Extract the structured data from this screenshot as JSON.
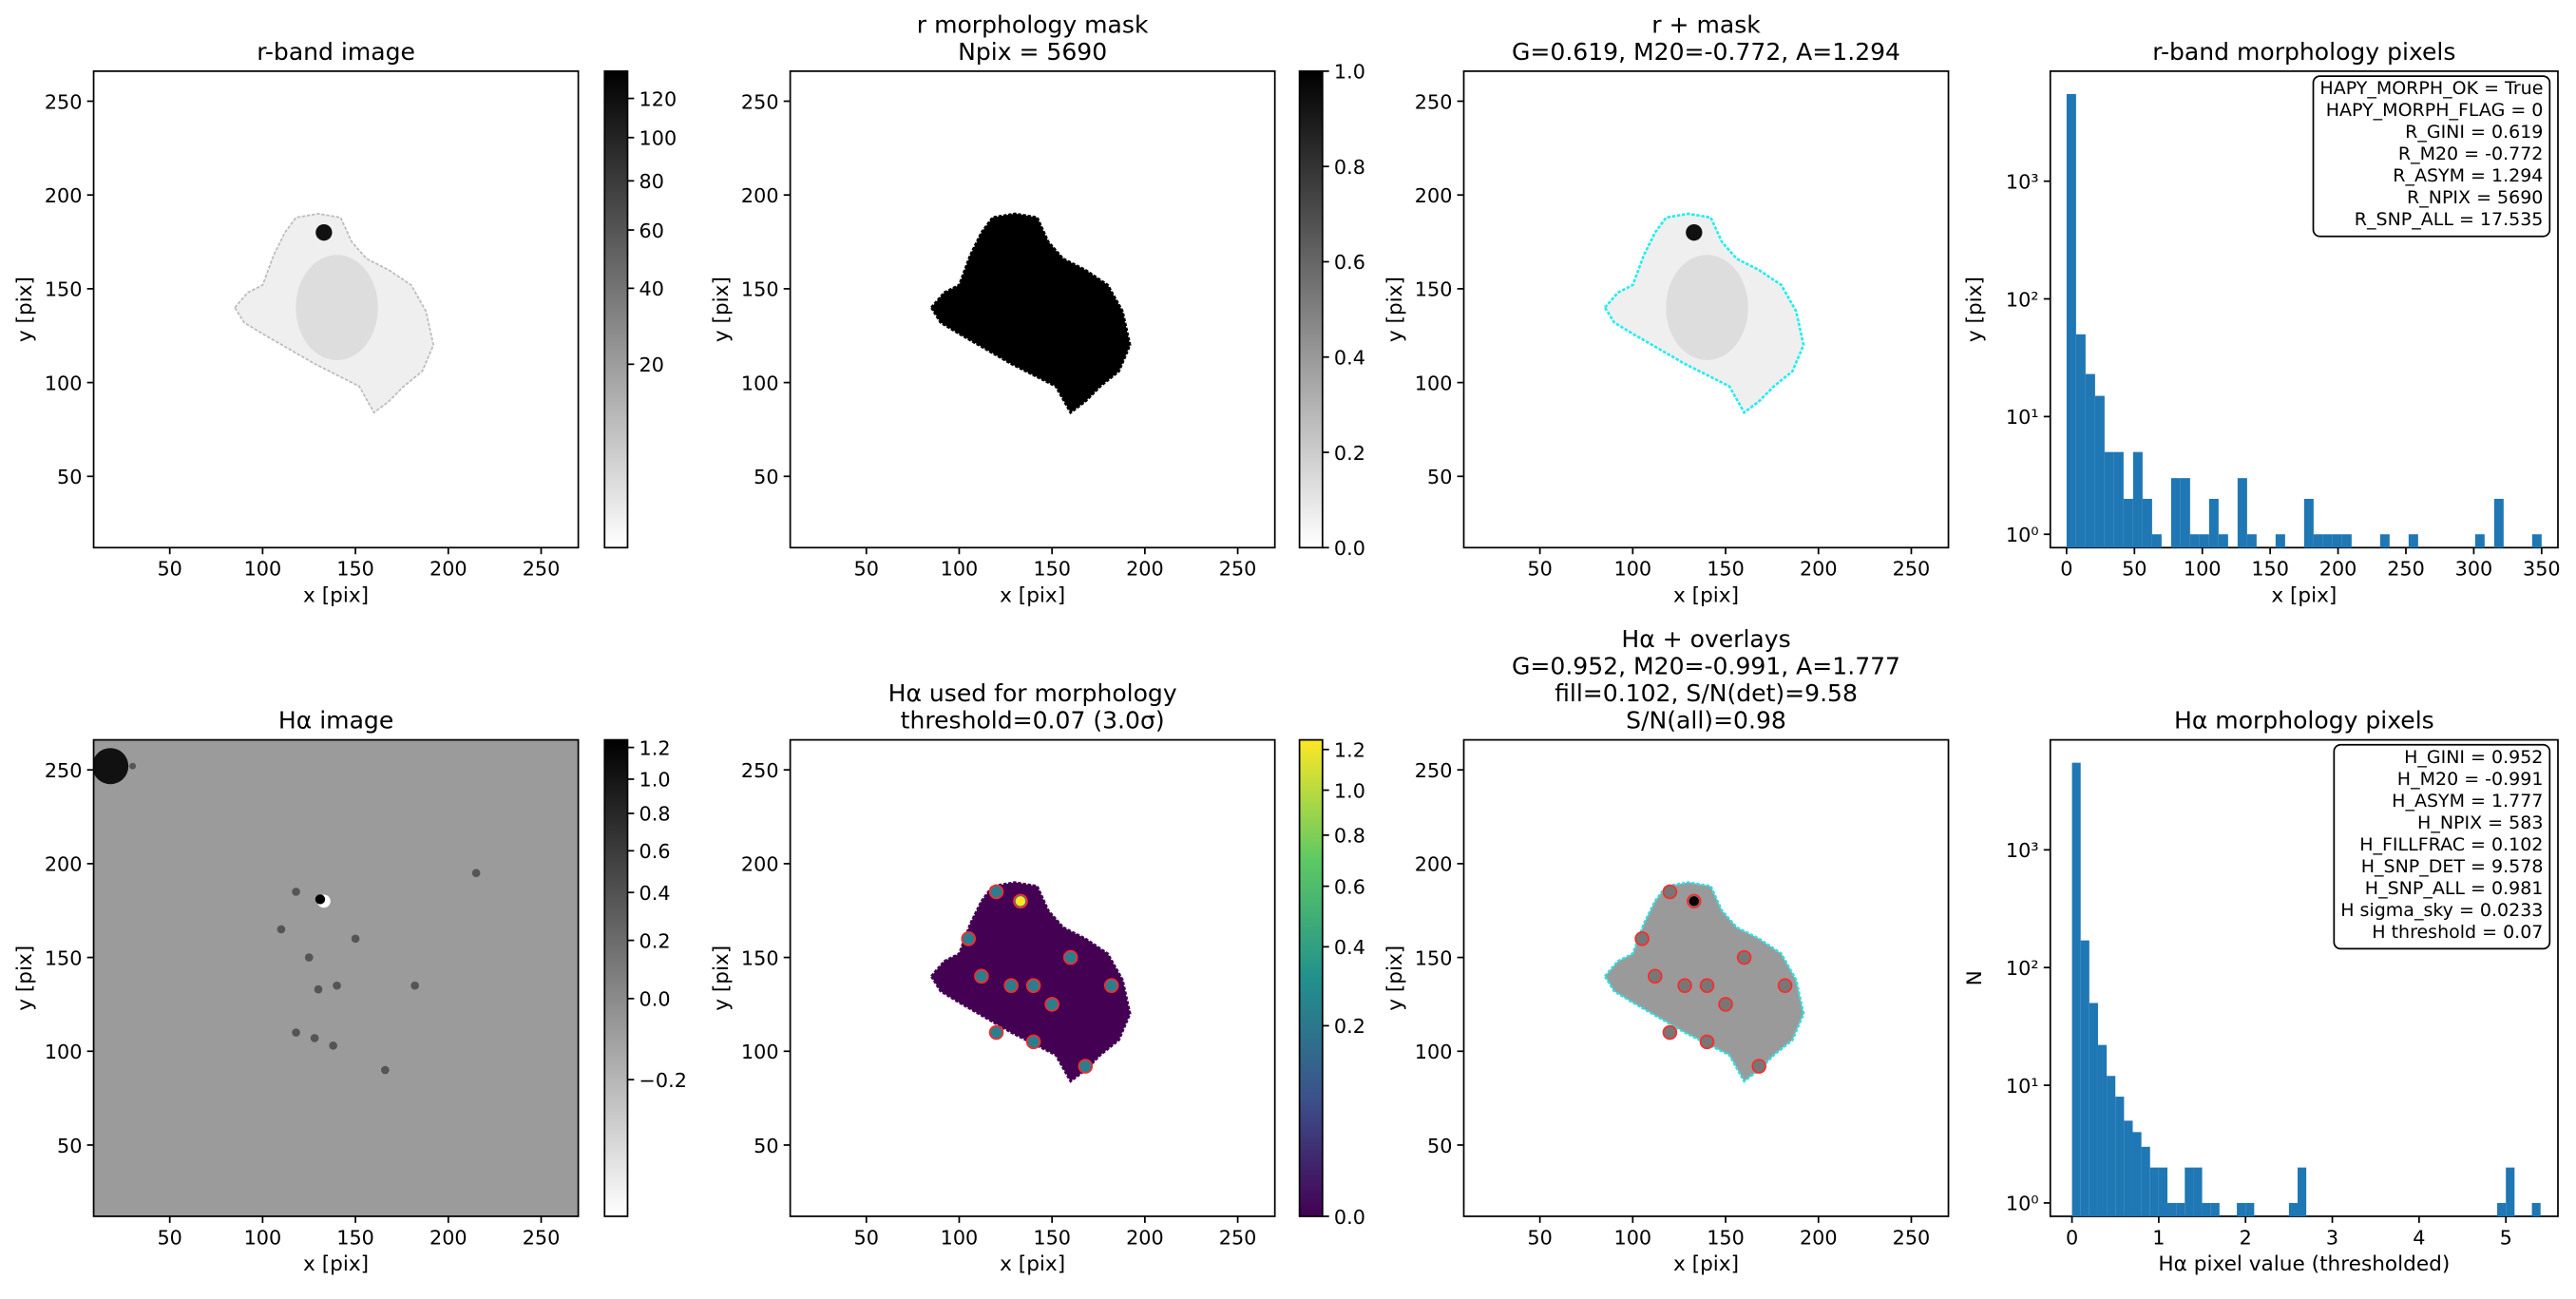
{
  "chart_data": [
    {
      "type": "image",
      "title": [
        "r-band image"
      ],
      "xlabel": "x [pix]",
      "ylabel": "y [pix]",
      "xlim": [
        9,
        270
      ],
      "ylim": [
        12,
        266
      ],
      "xticks": [
        50,
        100,
        150,
        200,
        250
      ],
      "yticks": [
        50,
        100,
        150,
        200,
        250
      ],
      "colorbar": {
        "lim": [
          0,
          135
        ],
        "scale": "sqrt",
        "colormap": "gray_r",
        "ticks": [
          20,
          40,
          60,
          80,
          100,
          120
        ]
      }
    },
    {
      "type": "image",
      "title": [
        "r morphology mask",
        "Npix = 5690"
      ],
      "xlabel": "x [pix]",
      "ylabel": "y [pix]",
      "xlim": [
        9,
        270
      ],
      "ylim": [
        12,
        266
      ],
      "xticks": [
        50,
        100,
        150,
        200,
        250
      ],
      "yticks": [
        50,
        100,
        150,
        200,
        250
      ],
      "colorbar": {
        "lim": [
          0,
          1
        ],
        "scale": "linear",
        "colormap": "gray_r",
        "ticks": [
          {
            "value": 0,
            "label": "0.0"
          },
          0.2,
          0.4,
          0.6,
          0.8,
          {
            "value": 1,
            "label": "1.0"
          }
        ]
      }
    },
    {
      "type": "image",
      "title": [
        "r + mask",
        "G=0.619, M20=-0.772, A=1.294"
      ],
      "xlabel": "x [pix]",
      "ylabel": "y [pix]",
      "xlim": [
        9,
        270
      ],
      "ylim": [
        12,
        266
      ],
      "xticks": [
        50,
        100,
        150,
        200,
        250
      ],
      "yticks": [
        50,
        100,
        150,
        200,
        250
      ]
    },
    {
      "type": "histogram",
      "title": [
        "r-band morphology pixels"
      ],
      "xlabel": "x [pix]",
      "ylabel": "y [pix]",
      "color": "#1f77b4",
      "log_y": true,
      "xlim": [
        -12,
        362
      ],
      "ylim": [
        0.77,
        8600
      ],
      "xticks": [
        0,
        50,
        100,
        150,
        200,
        250,
        300,
        350
      ],
      "yticks": [
        {
          "value": 1,
          "label": "10⁰"
        },
        {
          "value": 10,
          "label": "10¹"
        },
        {
          "value": 100,
          "label": "10²"
        },
        {
          "value": 1000,
          "label": "10³"
        }
      ],
      "bins": [
        0,
        7,
        14,
        21,
        28,
        35,
        42,
        49,
        56,
        63,
        70,
        77,
        84,
        91,
        98,
        105,
        112,
        119,
        126,
        133,
        140,
        147,
        154,
        161,
        168,
        175,
        182,
        189,
        196,
        203,
        210,
        217,
        224,
        231,
        238,
        245,
        252,
        259,
        266,
        273,
        280,
        287,
        294,
        301,
        308,
        315,
        322,
        329,
        336,
        343,
        350
      ],
      "counts": [
        5500,
        50,
        23,
        15,
        5,
        5,
        2,
        5,
        2,
        1,
        0,
        3,
        3,
        1,
        1,
        2,
        1,
        0,
        3,
        1,
        0,
        0,
        1,
        0,
        0,
        2,
        1,
        1,
        1,
        1,
        0,
        0,
        0,
        1,
        0,
        0,
        1,
        0,
        0,
        0,
        0,
        0,
        0,
        1,
        0,
        2,
        0,
        0,
        0,
        1
      ],
      "annotations": [
        "HAPY_MORPH_OK = True",
        "HAPY_MORPH_FLAG = 0",
        "R_GINI = 0.619",
        "R_M20 = -0.772",
        "R_ASYM = 1.294",
        "R_NPIX = 5690",
        "R_SNP_ALL = 17.535"
      ]
    },
    {
      "type": "image",
      "title": [
        "Hα image"
      ],
      "xlabel": "x [pix]",
      "ylabel": "y [pix]",
      "xlim": [
        9,
        270
      ],
      "ylim": [
        12,
        266
      ],
      "xticks": [
        50,
        100,
        150,
        200,
        250
      ],
      "yticks": [
        50,
        100,
        150,
        200,
        250
      ],
      "colorbar": {
        "lim": [
          -0.33,
          1.25
        ],
        "scale": "sqrt",
        "colormap": "gray_r",
        "ticks": [
          {
            "value": -0.2,
            "label": "−0.2"
          },
          {
            "value": 0,
            "label": "0.0"
          },
          0.2,
          0.4,
          0.6,
          0.8,
          {
            "value": 1,
            "label": "1.0"
          },
          1.2
        ]
      }
    },
    {
      "type": "image",
      "title": [
        "Hα used for morphology",
        "threshold=0.07 (3.0σ)"
      ],
      "xlabel": "x [pix]",
      "ylabel": "y [pix]",
      "xlim": [
        9,
        270
      ],
      "ylim": [
        12,
        266
      ],
      "xticks": [
        50,
        100,
        150,
        200,
        250
      ],
      "yticks": [
        50,
        100,
        150,
        200,
        250
      ],
      "colorbar": {
        "lim": [
          0,
          1.25
        ],
        "scale": "sqrt",
        "colormap": "viridis",
        "ticks": [
          {
            "value": 0,
            "label": "0.0"
          },
          0.2,
          0.4,
          0.6,
          0.8,
          {
            "value": 1,
            "label": "1.0"
          },
          1.2
        ]
      }
    },
    {
      "type": "image",
      "title": [
        "Hα + overlays",
        "G=0.952, M20=-0.991, A=1.777",
        "fill=0.102, S/N(det)=9.58",
        "S/N(all)=0.98"
      ],
      "xlabel": "x [pix]",
      "ylabel": "y [pix]",
      "xlim": [
        9,
        270
      ],
      "ylim": [
        12,
        266
      ],
      "xticks": [
        50,
        100,
        150,
        200,
        250
      ],
      "yticks": [
        50,
        100,
        150,
        200,
        250
      ]
    },
    {
      "type": "histogram",
      "title": [
        "Hα morphology pixels"
      ],
      "xlabel": "Hα pixel value (thresholded)",
      "ylabel": "N",
      "color": "#1f77b4",
      "log_y": true,
      "xlim": [
        -0.25,
        5.6
      ],
      "ylim": [
        0.77,
        8600
      ],
      "xticks": [
        0,
        1,
        2,
        3,
        4,
        5
      ],
      "yticks": [
        {
          "value": 1,
          "label": "10⁰"
        },
        {
          "value": 10,
          "label": "10¹"
        },
        {
          "value": 100,
          "label": "10²"
        },
        {
          "value": 1000,
          "label": "10³"
        }
      ],
      "bins": [
        0,
        0.1,
        0.2,
        0.3,
        0.4,
        0.5,
        0.6,
        0.7,
        0.8,
        0.9,
        1,
        1.1,
        1.2,
        1.3,
        1.4,
        1.5,
        1.6,
        1.7,
        1.8,
        1.9,
        2,
        2.1,
        2.2,
        2.3,
        2.4,
        2.5,
        2.6,
        2.7,
        2.8,
        2.9,
        3,
        3.1,
        3.2,
        3.3,
        3.4,
        3.5,
        3.6,
        3.7,
        3.8,
        3.9,
        4,
        4.1,
        4.2,
        4.3,
        4.4,
        4.5,
        4.6,
        4.7,
        4.8,
        4.9,
        5,
        5.1,
        5.2,
        5.3,
        5.4
      ],
      "counts": [
        5500,
        170,
        50,
        22,
        12,
        8,
        5,
        4,
        3,
        2,
        2,
        1,
        1,
        2,
        2,
        1,
        1,
        0,
        0,
        1,
        1,
        0,
        0,
        0,
        0,
        1,
        2,
        0,
        0,
        0,
        0,
        0,
        0,
        0,
        0,
        0,
        0,
        0,
        0,
        0,
        0,
        0,
        0,
        0,
        0,
        0,
        0,
        0,
        0,
        1,
        2,
        0,
        0,
        1
      ],
      "annotations": [
        "H_GINI = 0.952",
        "H_M20 = -0.991",
        "H_ASYM = 1.777",
        "H_NPIX = 583",
        "H_FILLFRAC = 0.102",
        "H_SNP_DET = 9.578",
        "H_SNP_ALL = 0.981",
        "H sigma_sky = 0.0233",
        "H threshold = 0.07"
      ]
    }
  ]
}
